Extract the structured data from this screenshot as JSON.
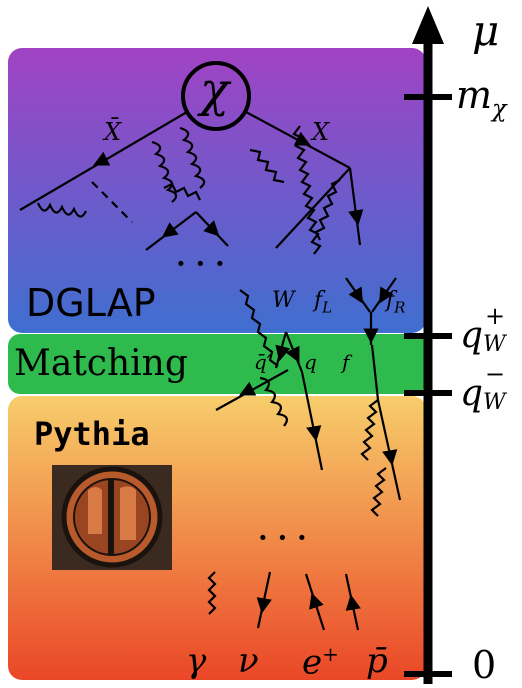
{
  "regions": {
    "dglap": "DGLAP",
    "matching": "Matching",
    "pythia": "Pythia"
  },
  "scale": {
    "axis_label": "μ",
    "mchi": "m",
    "mchi_sub": "χ",
    "qw_plus": "q",
    "qw_plus_sub": "W",
    "qw_plus_sup": "+",
    "qw_minus": "q",
    "qw_minus_sub": "W",
    "qw_minus_sup": "−",
    "zero": "0"
  },
  "particles": {
    "chi": "χ",
    "xbar": "X̄",
    "x": "X",
    "w": "W",
    "fl": "f",
    "fl_sub": "L",
    "fr": "f",
    "fr_sub": "R",
    "qbar_prime": "q̄′",
    "q": "q",
    "f": "f",
    "dots_top": "· · ·",
    "dots_bottom": "· · ·"
  },
  "final_state": {
    "gamma": "γ",
    "nu": "ν",
    "eplus": "e",
    "eplus_sup": "+",
    "pbar": "p̄"
  },
  "colors": {
    "dglap_top": "#a143c4",
    "dglap_bottom": "#3f6fd0",
    "matching": "#2fba4d",
    "pythia_top": "#f7cd6b",
    "pythia_bottom": "#ea4727"
  }
}
